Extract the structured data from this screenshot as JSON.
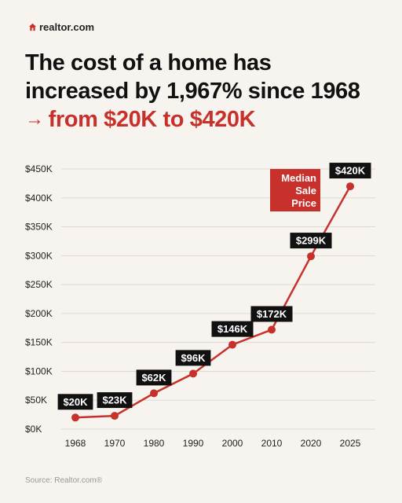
{
  "brand": {
    "name": "realtor.com",
    "icon": "house-icon"
  },
  "headline": {
    "line1": "The cost of a home has",
    "line2": "increased by 1,967% since 1968",
    "line3": "from $20K to $420K",
    "arrow": "→"
  },
  "colors": {
    "accent": "#c8312b",
    "label_bg": "#111111",
    "background": "#f7f4ef"
  },
  "source": "Source: Realtor.com®",
  "chart_data": {
    "type": "line",
    "title": "The cost of a home has increased by 1,967% since 1968",
    "xlabel": "",
    "ylabel": "",
    "categories": [
      "1968",
      "1970",
      "1980",
      "1990",
      "2000",
      "2010",
      "2020",
      "2025"
    ],
    "series": [
      {
        "name": "Median Sale Price",
        "values": [
          20,
          23,
          62,
          96,
          146,
          172,
          299,
          420
        ],
        "labels": [
          "$20K",
          "$23K",
          "$62K",
          "$96K",
          "$146K",
          "$172K",
          "$299K",
          "$420K"
        ]
      }
    ],
    "ylim": [
      0,
      450
    ],
    "yticks": [
      0,
      50,
      100,
      150,
      200,
      250,
      300,
      350,
      400,
      450
    ],
    "ytick_labels": [
      "$0K",
      "$50K",
      "$100K",
      "$150K",
      "$200K",
      "$250K",
      "$300K",
      "$350K",
      "$400K",
      "$450K"
    ],
    "grid": true,
    "series_label_lines": [
      "Median",
      "Sale",
      "Price"
    ]
  }
}
